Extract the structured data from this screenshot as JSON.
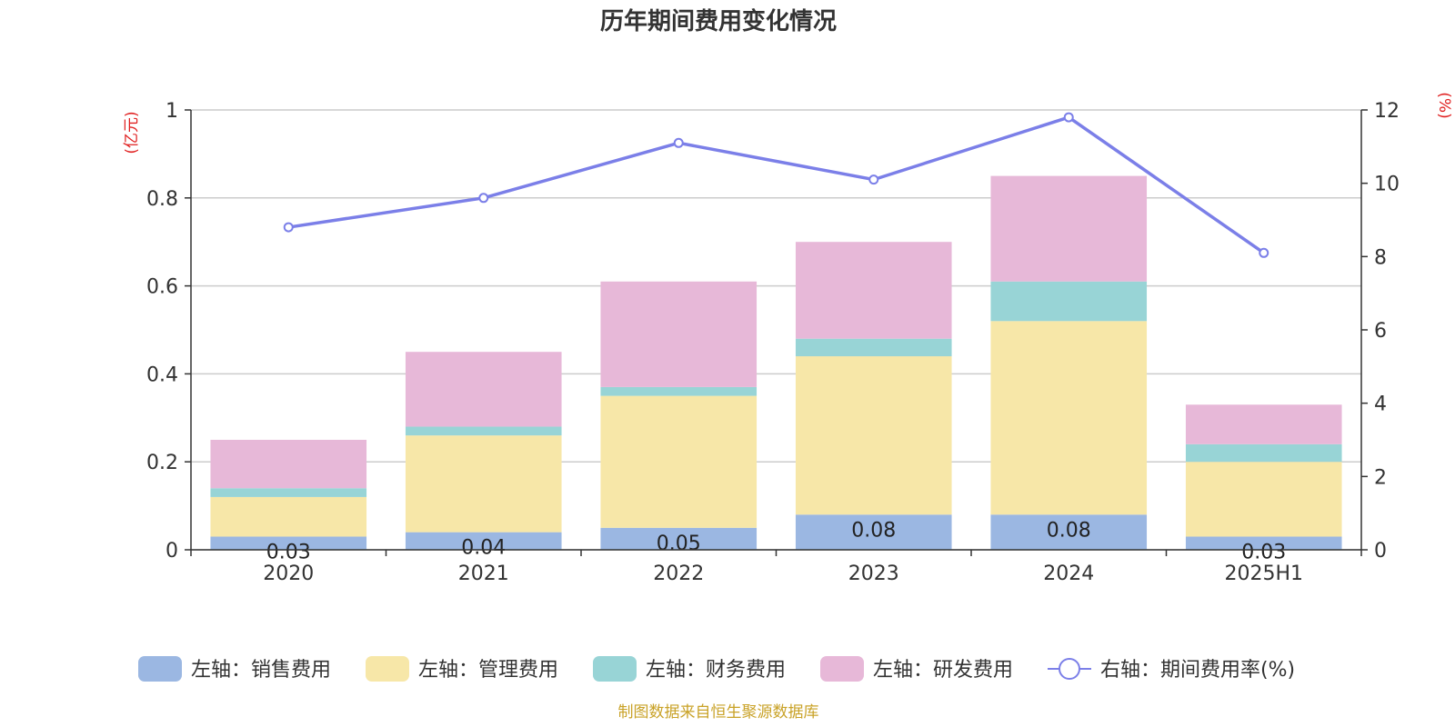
{
  "chart_data": {
    "type": "bar",
    "title": "历年期间费用变化情况",
    "categories": [
      "2020",
      "2021",
      "2022",
      "2023",
      "2024",
      "2025H1"
    ],
    "left_axis": {
      "unit": "(亿元)",
      "min": 0,
      "max": 1,
      "ticks": [
        "0",
        "0.2",
        "0.4",
        "0.6",
        "0.8",
        "1"
      ]
    },
    "right_axis": {
      "unit": "(%)",
      "min": 0,
      "max": 12,
      "ticks": [
        "0",
        "2",
        "4",
        "6",
        "8",
        "10",
        "12"
      ]
    },
    "series": [
      {
        "name": "左轴：销售费用",
        "kind": "bar",
        "color": "#9bb7e2",
        "values": [
          0.03,
          0.04,
          0.05,
          0.08,
          0.08,
          0.03
        ],
        "labels": [
          "0.03",
          "0.04",
          "0.05",
          "0.08",
          "0.08",
          "0.03"
        ]
      },
      {
        "name": "左轴：管理费用",
        "kind": "bar",
        "color": "#f7e7a8",
        "values": [
          0.09,
          0.22,
          0.3,
          0.36,
          0.44,
          0.17
        ]
      },
      {
        "name": "左轴：财务费用",
        "kind": "bar",
        "color": "#98d4d6",
        "values": [
          0.02,
          0.02,
          0.02,
          0.04,
          0.09,
          0.04
        ]
      },
      {
        "name": "左轴：研发费用",
        "kind": "bar",
        "color": "#e7b8d8",
        "values": [
          0.11,
          0.17,
          0.24,
          0.22,
          0.24,
          0.09
        ]
      },
      {
        "name": "右轴：期间费用率(%)",
        "kind": "line",
        "color": "#7b7fe8",
        "values": [
          8.8,
          9.6,
          11.1,
          10.1,
          11.8,
          8.1
        ]
      }
    ],
    "unit_color": "#e02020",
    "grid": true,
    "legend_position": "bottom"
  },
  "source": {
    "text": "制图数据来自恒生聚源数据库",
    "color": "#c9a227"
  }
}
